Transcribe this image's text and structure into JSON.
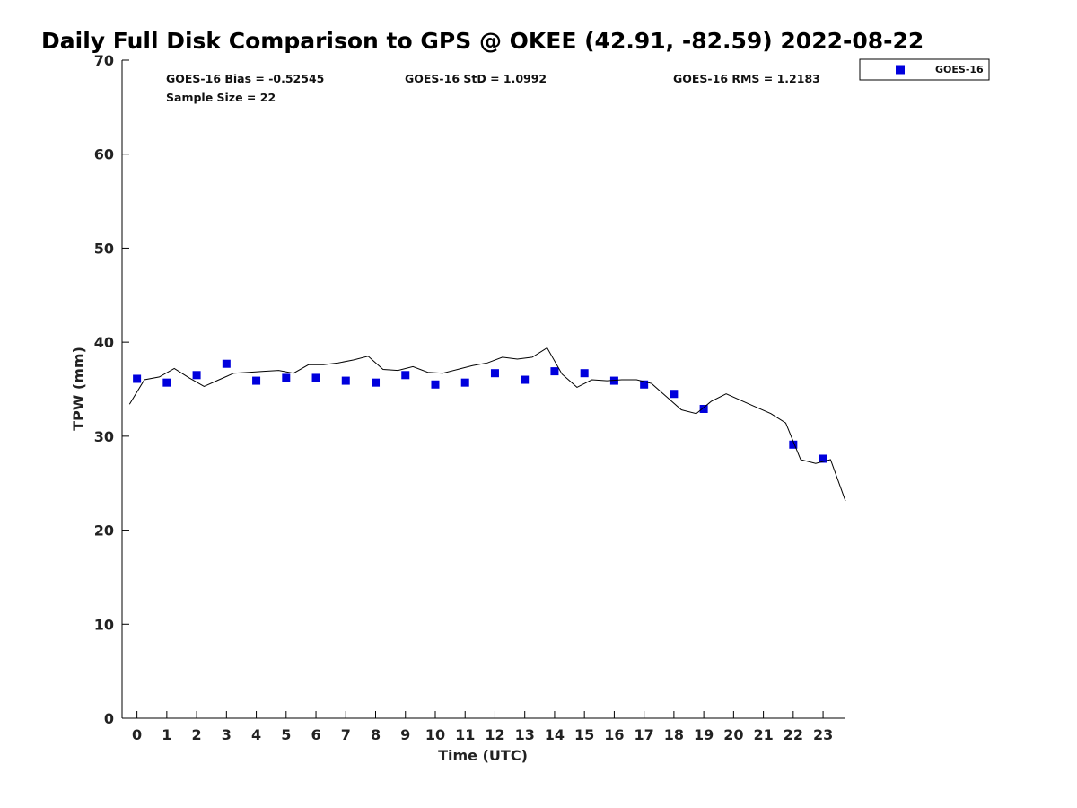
{
  "chart_data": {
    "type": "scatter",
    "title": "Daily Full Disk Comparison to GPS @ OKEE (42.91, -82.59) 2022-08-22",
    "xlabel": "Time (UTC)",
    "ylabel": "TPW (mm)",
    "xlim": [
      -0.5,
      23.75
    ],
    "ylim": [
      0,
      70
    ],
    "xticks": [
      0,
      1,
      2,
      3,
      4,
      5,
      6,
      7,
      8,
      9,
      10,
      11,
      12,
      13,
      14,
      15,
      16,
      17,
      18,
      19,
      20,
      21,
      22,
      23
    ],
    "yticks": [
      0,
      10,
      20,
      30,
      40,
      50,
      60,
      70
    ],
    "grid": false,
    "legend_position": "top-right",
    "stats": {
      "bias": "GOES-16 Bias = -0.52545",
      "std": "GOES-16 StD = 1.0992",
      "rms": "GOES-16 RMS = 1.2183",
      "sample": "Sample Size = 22"
    },
    "series": [
      {
        "name": "GOES-16",
        "type": "scatter",
        "color": "#0000dd",
        "marker": "square",
        "points": [
          [
            0,
            36.1
          ],
          [
            1,
            35.7
          ],
          [
            2,
            36.5
          ],
          [
            3,
            37.7
          ],
          [
            4,
            35.9
          ],
          [
            5,
            36.2
          ],
          [
            6,
            36.2
          ],
          [
            7,
            35.9
          ],
          [
            8,
            35.7
          ],
          [
            9,
            36.5
          ],
          [
            10,
            35.5
          ],
          [
            11,
            35.7
          ],
          [
            12,
            36.7
          ],
          [
            13,
            36.0
          ],
          [
            14,
            36.9
          ],
          [
            15,
            36.7
          ],
          [
            16,
            35.9
          ],
          [
            17,
            35.5
          ],
          [
            18,
            34.5
          ],
          [
            19,
            32.9
          ],
          [
            22,
            29.1
          ],
          [
            23,
            27.6
          ]
        ]
      },
      {
        "type": "line",
        "color": "#000000",
        "points": [
          [
            -0.25,
            33.4
          ],
          [
            0.25,
            36.0
          ],
          [
            0.75,
            36.3
          ],
          [
            1.25,
            37.2
          ],
          [
            1.75,
            36.2
          ],
          [
            2.25,
            35.3
          ],
          [
            2.75,
            36.0
          ],
          [
            3.25,
            36.7
          ],
          [
            3.75,
            36.8
          ],
          [
            4.25,
            36.9
          ],
          [
            4.75,
            37.0
          ],
          [
            5.25,
            36.7
          ],
          [
            5.75,
            37.6
          ],
          [
            6.25,
            37.6
          ],
          [
            6.75,
            37.8
          ],
          [
            7.25,
            38.1
          ],
          [
            7.75,
            38.5
          ],
          [
            8.25,
            37.1
          ],
          [
            8.75,
            37.0
          ],
          [
            9.25,
            37.4
          ],
          [
            9.75,
            36.8
          ],
          [
            10.25,
            36.7
          ],
          [
            10.75,
            37.1
          ],
          [
            11.25,
            37.5
          ],
          [
            11.75,
            37.8
          ],
          [
            12.25,
            38.4
          ],
          [
            12.75,
            38.2
          ],
          [
            13.25,
            38.4
          ],
          [
            13.75,
            39.4
          ],
          [
            14.25,
            36.6
          ],
          [
            14.75,
            35.2
          ],
          [
            15.25,
            36.0
          ],
          [
            15.75,
            35.9
          ],
          [
            16.25,
            36.0
          ],
          [
            16.75,
            36.0
          ],
          [
            17.25,
            35.6
          ],
          [
            17.75,
            34.2
          ],
          [
            18.25,
            32.8
          ],
          [
            18.75,
            32.4
          ],
          [
            19.25,
            33.7
          ],
          [
            19.75,
            34.5
          ],
          [
            20.25,
            33.8
          ],
          [
            20.75,
            33.1
          ],
          [
            21.25,
            32.4
          ],
          [
            21.75,
            31.4
          ],
          [
            22.25,
            27.5
          ],
          [
            22.75,
            27.1
          ],
          [
            23.25,
            27.5
          ],
          [
            23.75,
            23.1
          ]
        ]
      }
    ]
  }
}
